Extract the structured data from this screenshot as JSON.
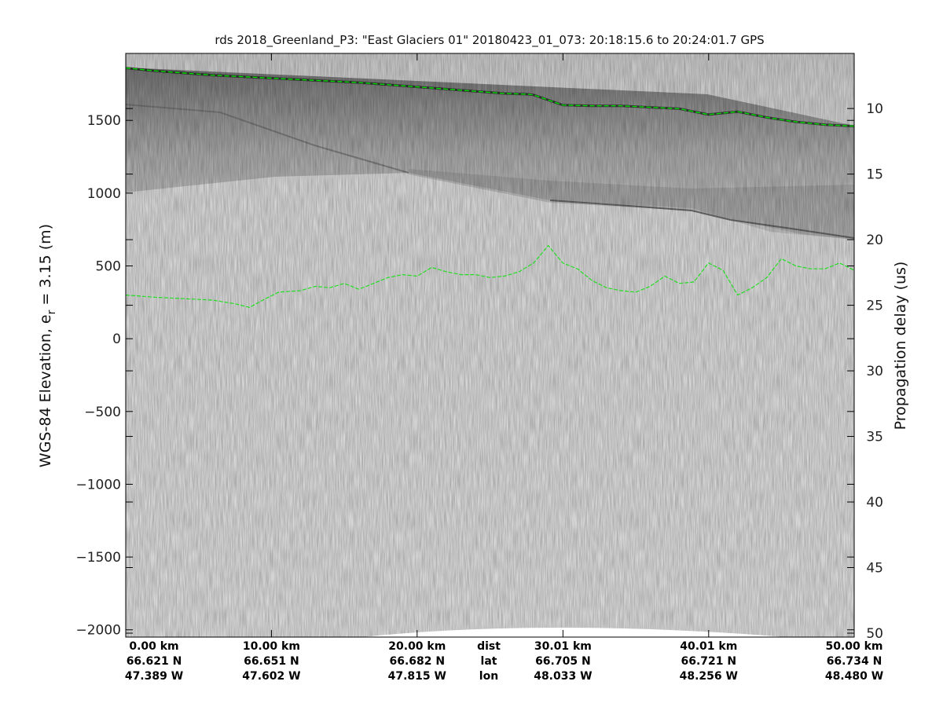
{
  "chart_data": {
    "type": "radargram",
    "title": "rds 2018_Greenland_P3: \"East Glaciers 01\"  20180423_01_073: 20:18:15.6 to 20:24:01.7 GPS",
    "ylabel_left_main": "WGS-84 Elevation, e",
    "ylabel_left_sub": "r",
    "ylabel_left_tail": " = 3.15 (m)",
    "ylabel_right": "Propagation delay (us)",
    "ylim_left": [
      -2050,
      1960
    ],
    "yticks_left": [
      1500,
      1000,
      500,
      0,
      -500,
      -1000,
      -1500,
      -2000
    ],
    "yticks_left_labels": [
      "1500",
      "1000",
      "500",
      "0",
      "−500",
      "−1000",
      "−1500",
      "−2000"
    ],
    "ylim_right": [
      5.8,
      50.3
    ],
    "yticks_right": [
      10,
      15,
      20,
      25,
      30,
      35,
      40,
      45,
      50
    ],
    "yticks_right_labels": [
      "10",
      "15",
      "20",
      "25",
      "30",
      "35",
      "40",
      "45",
      "50"
    ],
    "xlim_km": [
      0,
      50
    ],
    "xticks": [
      {
        "km": 0.0,
        "dist": "0.00 km",
        "lat": "66.621 N",
        "lon": "47.389 W"
      },
      {
        "km": 10.0,
        "dist": "10.00 km",
        "lat": "66.651 N",
        "lon": "47.602 W"
      },
      {
        "km": 20.0,
        "dist": "20.00 km",
        "lat": "66.682 N",
        "lon": "47.815 W"
      },
      {
        "km": 30.01,
        "dist": "30.01 km",
        "lat": "66.705 N",
        "lon": "48.033 W"
      },
      {
        "km": 40.01,
        "dist": "40.01 km",
        "lat": "66.721 N",
        "lon": "48.256 W"
      },
      {
        "km": 50.0,
        "dist": "50.00 km",
        "lat": "66.734 N",
        "lon": "48.480 W"
      }
    ],
    "row_labels": {
      "dist": "dist",
      "lat": "lat",
      "lon": "lon"
    },
    "series": [
      {
        "color": "#00dd00",
        "x_km": [
          0,
          2,
          4,
          6,
          8,
          10,
          12,
          14,
          16,
          18,
          20,
          22,
          24,
          26,
          27.5,
          28,
          30,
          32,
          34,
          36,
          38,
          40,
          42,
          44,
          46,
          48,
          50
        ],
        "y_m": [
          1860,
          1840,
          1825,
          1810,
          1800,
          1790,
          1780,
          1770,
          1760,
          1745,
          1730,
          1715,
          1700,
          1685,
          1680,
          1675,
          1605,
          1600,
          1600,
          1590,
          1580,
          1540,
          1560,
          1520,
          1490,
          1470,
          1460
        ]
      },
      {
        "color": "#22dd22",
        "x_km": [
          0,
          2,
          4,
          6,
          7.5,
          8.5,
          9.5,
          10.5,
          12,
          13,
          14,
          15,
          16,
          17,
          18,
          19,
          20,
          21,
          22,
          23,
          24,
          25,
          26,
          27,
          28,
          29,
          30,
          31,
          32,
          33,
          34,
          35,
          36,
          37,
          38,
          39,
          40,
          41,
          42,
          43,
          44,
          45,
          46,
          47,
          48,
          49,
          50
        ],
        "y_m": [
          300,
          285,
          275,
          265,
          240,
          215,
          270,
          320,
          330,
          360,
          350,
          380,
          340,
          380,
          420,
          440,
          430,
          490,
          460,
          440,
          440,
          420,
          430,
          460,
          520,
          640,
          520,
          480,
          400,
          350,
          330,
          320,
          360,
          430,
          380,
          390,
          520,
          470,
          300,
          350,
          420,
          550,
          500,
          480,
          480,
          520,
          470
        ]
      }
    ]
  }
}
